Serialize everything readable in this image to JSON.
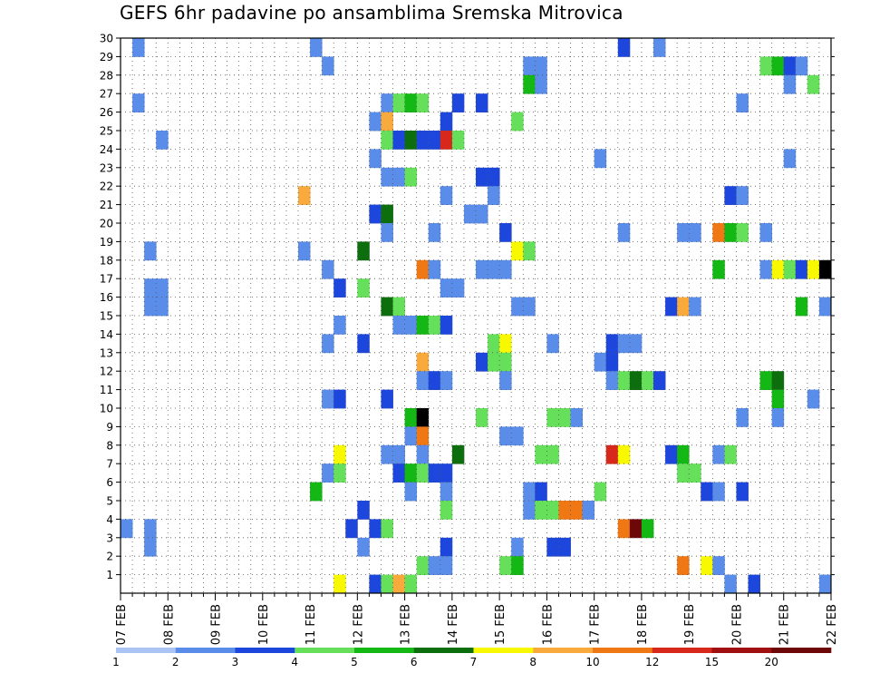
{
  "chart_data": {
    "type": "heatmap",
    "title": "GEFS 6hr padavine po ansamblima Sremska Mitrovica",
    "x_tick_labels": [
      "07 FEB",
      "08 FEB",
      "09 FEB",
      "10 FEB",
      "11 FEB",
      "12 FEB",
      "13 FEB",
      "14 FEB",
      "15 FEB",
      "16 FEB",
      "17 FEB",
      "18 FEB",
      "19 FEB",
      "20 FEB",
      "21 FEB",
      "22 FEB"
    ],
    "y_tick_labels": [
      "1",
      "2",
      "3",
      "4",
      "5",
      "6",
      "7",
      "8",
      "9",
      "10",
      "11",
      "12",
      "13",
      "14",
      "15",
      "16",
      "17",
      "18",
      "19",
      "20",
      "21",
      "22",
      "23",
      "24",
      "25",
      "26",
      "27",
      "28",
      "29",
      "30"
    ],
    "x_start": "2023-02-07 00Z",
    "x_step_hours": 6,
    "n_time_steps": 60,
    "y_range": [
      0,
      30
    ],
    "grid": true,
    "colorbar": {
      "position": "bottom",
      "labels": [
        "1",
        "2",
        "3",
        "4",
        "5",
        "6",
        "7",
        "8",
        "10",
        "12",
        "15",
        "20"
      ],
      "colors": [
        "#aac4f4",
        "#5a8cea",
        "#1c46dc",
        "#66e05a",
        "#14b814",
        "#0c6e0c",
        "#f8f800",
        "#f8aa3c",
        "#f07814",
        "#d8281c",
        "#a01010",
        "#6e0808"
      ]
    },
    "cells": [
      [
        1,
        30,
        1
      ],
      [
        16,
        30,
        1
      ],
      [
        42,
        30,
        2
      ],
      [
        45,
        30,
        1
      ],
      [
        17,
        29,
        1
      ],
      [
        34,
        29,
        1
      ],
      [
        35,
        29,
        1
      ],
      [
        54,
        29,
        3
      ],
      [
        55,
        29,
        4
      ],
      [
        56,
        29,
        2
      ],
      [
        57,
        29,
        1
      ],
      [
        34,
        28,
        4
      ],
      [
        35,
        28,
        1
      ],
      [
        56,
        28,
        1
      ],
      [
        58,
        28,
        3
      ],
      [
        1,
        27,
        1
      ],
      [
        22,
        27,
        1
      ],
      [
        23,
        27,
        3
      ],
      [
        24,
        27,
        4
      ],
      [
        25,
        27,
        3
      ],
      [
        28,
        27,
        2
      ],
      [
        30,
        27,
        2
      ],
      [
        52,
        27,
        1
      ],
      [
        21,
        26,
        1
      ],
      [
        22,
        26,
        7
      ],
      [
        27,
        26,
        2
      ],
      [
        33,
        26,
        3
      ],
      [
        3,
        25,
        1
      ],
      [
        22,
        25,
        3
      ],
      [
        23,
        25,
        2
      ],
      [
        24,
        25,
        5
      ],
      [
        25,
        25,
        2
      ],
      [
        26,
        25,
        2
      ],
      [
        27,
        25,
        9
      ],
      [
        28,
        25,
        3
      ],
      [
        21,
        24,
        1
      ],
      [
        40,
        24,
        1
      ],
      [
        56,
        24,
        1
      ],
      [
        22,
        23,
        1
      ],
      [
        23,
        23,
        1
      ],
      [
        24,
        23,
        3
      ],
      [
        30,
        23,
        2
      ],
      [
        31,
        23,
        2
      ],
      [
        15,
        22,
        7
      ],
      [
        27,
        22,
        1
      ],
      [
        31,
        22,
        1
      ],
      [
        51,
        22,
        2
      ],
      [
        52,
        22,
        1
      ],
      [
        21,
        21,
        2
      ],
      [
        22,
        21,
        5
      ],
      [
        29,
        21,
        1
      ],
      [
        30,
        21,
        1
      ],
      [
        22,
        20,
        1
      ],
      [
        26,
        20,
        1
      ],
      [
        32,
        20,
        2
      ],
      [
        42,
        20,
        1
      ],
      [
        47,
        20,
        1
      ],
      [
        48,
        20,
        1
      ],
      [
        50,
        20,
        8
      ],
      [
        51,
        20,
        4
      ],
      [
        52,
        20,
        3
      ],
      [
        54,
        20,
        1
      ],
      [
        2,
        19,
        1
      ],
      [
        15,
        19,
        1
      ],
      [
        20,
        19,
        5
      ],
      [
        33,
        19,
        6
      ],
      [
        34,
        19,
        3
      ],
      [
        17,
        18,
        1
      ],
      [
        25,
        18,
        8
      ],
      [
        26,
        18,
        1
      ],
      [
        30,
        18,
        1
      ],
      [
        31,
        18,
        1
      ],
      [
        32,
        18,
        1
      ],
      [
        50,
        18,
        4
      ],
      [
        54,
        18,
        1
      ],
      [
        55,
        18,
        6
      ],
      [
        56,
        18,
        3
      ],
      [
        57,
        18,
        2
      ],
      [
        58,
        18,
        6
      ],
      [
        59,
        18,
        12
      ],
      [
        2,
        17,
        1
      ],
      [
        3,
        17,
        1
      ],
      [
        18,
        17,
        2
      ],
      [
        20,
        17,
        3
      ],
      [
        27,
        17,
        1
      ],
      [
        28,
        17,
        1
      ],
      [
        2,
        16,
        1
      ],
      [
        3,
        16,
        1
      ],
      [
        22,
        16,
        5
      ],
      [
        23,
        16,
        3
      ],
      [
        33,
        16,
        1
      ],
      [
        34,
        16,
        1
      ],
      [
        46,
        16,
        2
      ],
      [
        47,
        16,
        7
      ],
      [
        48,
        16,
        1
      ],
      [
        57,
        16,
        4
      ],
      [
        59,
        16,
        1
      ],
      [
        18,
        15,
        1
      ],
      [
        23,
        15,
        1
      ],
      [
        24,
        15,
        1
      ],
      [
        25,
        15,
        4
      ],
      [
        26,
        15,
        3
      ],
      [
        27,
        15,
        2
      ],
      [
        17,
        14,
        1
      ],
      [
        20,
        14,
        2
      ],
      [
        31,
        14,
        3
      ],
      [
        32,
        14,
        6
      ],
      [
        36,
        14,
        1
      ],
      [
        41,
        14,
        2
      ],
      [
        42,
        14,
        1
      ],
      [
        43,
        14,
        1
      ],
      [
        25,
        13,
        7
      ],
      [
        30,
        13,
        2
      ],
      [
        31,
        13,
        3
      ],
      [
        32,
        13,
        3
      ],
      [
        40,
        13,
        1
      ],
      [
        41,
        13,
        2
      ],
      [
        25,
        12,
        1
      ],
      [
        26,
        12,
        2
      ],
      [
        27,
        12,
        1
      ],
      [
        32,
        12,
        1
      ],
      [
        41,
        12,
        1
      ],
      [
        42,
        12,
        3
      ],
      [
        43,
        12,
        5
      ],
      [
        44,
        12,
        3
      ],
      [
        45,
        12,
        2
      ],
      [
        54,
        12,
        4
      ],
      [
        55,
        12,
        5
      ],
      [
        17,
        11,
        1
      ],
      [
        18,
        11,
        2
      ],
      [
        22,
        11,
        2
      ],
      [
        55,
        11,
        4
      ],
      [
        58,
        11,
        1
      ],
      [
        24,
        10,
        4
      ],
      [
        25,
        10,
        12
      ],
      [
        30,
        10,
        3
      ],
      [
        36,
        10,
        3
      ],
      [
        37,
        10,
        3
      ],
      [
        38,
        10,
        1
      ],
      [
        52,
        10,
        1
      ],
      [
        55,
        10,
        1
      ],
      [
        24,
        9,
        1
      ],
      [
        25,
        9,
        8
      ],
      [
        32,
        9,
        1
      ],
      [
        33,
        9,
        1
      ],
      [
        18,
        8,
        6
      ],
      [
        22,
        8,
        1
      ],
      [
        23,
        8,
        1
      ],
      [
        25,
        8,
        1
      ],
      [
        28,
        8,
        5
      ],
      [
        35,
        8,
        3
      ],
      [
        36,
        8,
        3
      ],
      [
        41,
        8,
        9
      ],
      [
        42,
        8,
        6
      ],
      [
        46,
        8,
        2
      ],
      [
        47,
        8,
        4
      ],
      [
        50,
        8,
        1
      ],
      [
        51,
        8,
        3
      ],
      [
        17,
        7,
        1
      ],
      [
        18,
        7,
        3
      ],
      [
        23,
        7,
        2
      ],
      [
        24,
        7,
        4
      ],
      [
        25,
        7,
        3
      ],
      [
        26,
        7,
        2
      ],
      [
        27,
        7,
        2
      ],
      [
        47,
        7,
        3
      ],
      [
        48,
        7,
        3
      ],
      [
        16,
        6,
        4
      ],
      [
        24,
        6,
        1
      ],
      [
        27,
        6,
        1
      ],
      [
        34,
        6,
        1
      ],
      [
        35,
        6,
        2
      ],
      [
        40,
        6,
        3
      ],
      [
        49,
        6,
        2
      ],
      [
        50,
        6,
        1
      ],
      [
        52,
        6,
        2
      ],
      [
        20,
        5,
        2
      ],
      [
        27,
        5,
        3
      ],
      [
        34,
        5,
        1
      ],
      [
        35,
        5,
        3
      ],
      [
        36,
        5,
        3
      ],
      [
        37,
        5,
        8
      ],
      [
        38,
        5,
        8
      ],
      [
        39,
        5,
        1
      ],
      [
        0,
        4,
        1
      ],
      [
        2,
        4,
        1
      ],
      [
        19,
        4,
        2
      ],
      [
        21,
        4,
        2
      ],
      [
        22,
        4,
        3
      ],
      [
        42,
        4,
        8
      ],
      [
        43,
        4,
        11
      ],
      [
        44,
        4,
        4
      ],
      [
        2,
        3,
        1
      ],
      [
        20,
        3,
        1
      ],
      [
        27,
        3,
        2
      ],
      [
        33,
        3,
        1
      ],
      [
        36,
        3,
        2
      ],
      [
        37,
        3,
        2
      ],
      [
        25,
        2,
        3
      ],
      [
        26,
        2,
        1
      ],
      [
        27,
        2,
        1
      ],
      [
        32,
        2,
        3
      ],
      [
        33,
        2,
        4
      ],
      [
        47,
        2,
        8
      ],
      [
        49,
        2,
        6
      ],
      [
        50,
        2,
        1
      ],
      [
        18,
        1,
        6
      ],
      [
        21,
        1,
        2
      ],
      [
        22,
        1,
        3
      ],
      [
        23,
        1,
        7
      ],
      [
        24,
        1,
        3
      ],
      [
        51,
        1,
        1
      ],
      [
        53,
        1,
        2
      ],
      [
        59,
        1,
        1
      ]
    ]
  }
}
